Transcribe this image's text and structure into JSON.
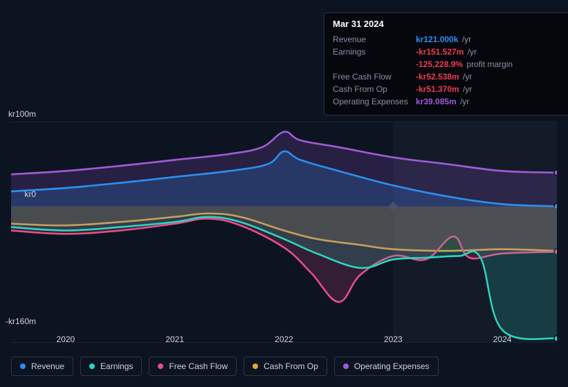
{
  "tooltip": {
    "date": "Mar 31 2024",
    "rows": [
      {
        "label": "Revenue",
        "value": "kr121.000k",
        "suffix": "/yr",
        "color": "#2b8fef"
      },
      {
        "label": "Earnings",
        "value": "-kr151.527m",
        "suffix": "/yr",
        "color": "#ef3b51"
      },
      {
        "label": "",
        "value": "-125,228.9%",
        "suffix": "profit margin",
        "color": "#ef3b51"
      },
      {
        "label": "Free Cash Flow",
        "value": "-kr52.538m",
        "suffix": "/yr",
        "color": "#ef3b51"
      },
      {
        "label": "Cash From Op",
        "value": "-kr51.370m",
        "suffix": "/yr",
        "color": "#ef3b51"
      },
      {
        "label": "Operating Expenses",
        "value": "kr39.085m",
        "suffix": "/yr",
        "color": "#9b59d8"
      }
    ]
  },
  "chart": {
    "background_color": "#0d1421",
    "ylim": [
      -160,
      100
    ],
    "y_ticks": [
      {
        "value": 100,
        "label": "kr100m"
      },
      {
        "value": 0,
        "label": "kr0"
      },
      {
        "value": -160,
        "label": "-kr160m"
      }
    ],
    "x_categories": [
      "2020",
      "2021",
      "2022",
      "2023",
      "2024"
    ],
    "x_range": [
      2019.5,
      2024.5
    ],
    "gridline_color": "#2a3040",
    "highlight_x": 2024.25,
    "event_marker": {
      "x": 2023.0,
      "color": "#4a5268"
    },
    "series": [
      {
        "name": "Operating Expenses",
        "color": "#a05bd6",
        "fill_to": "zero",
        "fill_opacity": 0.18,
        "line_width": 2.5,
        "data": [
          [
            2019.5,
            38
          ],
          [
            2020.0,
            42
          ],
          [
            2020.5,
            48
          ],
          [
            2021.0,
            55
          ],
          [
            2021.5,
            62
          ],
          [
            2021.8,
            70
          ],
          [
            2022.0,
            88
          ],
          [
            2022.15,
            78
          ],
          [
            2022.5,
            70
          ],
          [
            2023.0,
            58
          ],
          [
            2023.5,
            50
          ],
          [
            2024.0,
            42
          ],
          [
            2024.5,
            40
          ]
        ]
      },
      {
        "name": "Revenue",
        "color": "#2b8fef",
        "fill_to": "zero",
        "fill_opacity": 0.22,
        "line_width": 2.5,
        "data": [
          [
            2019.5,
            18
          ],
          [
            2020.0,
            22
          ],
          [
            2020.5,
            28
          ],
          [
            2021.0,
            35
          ],
          [
            2021.5,
            42
          ],
          [
            2021.85,
            50
          ],
          [
            2022.0,
            65
          ],
          [
            2022.15,
            55
          ],
          [
            2022.5,
            42
          ],
          [
            2023.0,
            25
          ],
          [
            2023.5,
            12
          ],
          [
            2024.0,
            3
          ],
          [
            2024.5,
            0.5
          ]
        ]
      },
      {
        "name": "Cash From Op",
        "color": "#e8a33c",
        "fill_to": "zero",
        "fill_opacity": 0.15,
        "line_width": 2.5,
        "data": [
          [
            2019.5,
            -20
          ],
          [
            2020.0,
            -22
          ],
          [
            2020.5,
            -18
          ],
          [
            2021.0,
            -12
          ],
          [
            2021.3,
            -8
          ],
          [
            2021.6,
            -12
          ],
          [
            2022.0,
            -28
          ],
          [
            2022.3,
            -38
          ],
          [
            2022.7,
            -45
          ],
          [
            2023.0,
            -50
          ],
          [
            2023.5,
            -52
          ],
          [
            2024.0,
            -50
          ],
          [
            2024.5,
            -52
          ]
        ]
      },
      {
        "name": "Free Cash Flow",
        "color": "#e84d8a",
        "fill_to": "zero",
        "fill_opacity": 0.18,
        "line_width": 2.5,
        "data": [
          [
            2019.5,
            -28
          ],
          [
            2020.0,
            -32
          ],
          [
            2020.5,
            -28
          ],
          [
            2021.0,
            -20
          ],
          [
            2021.3,
            -14
          ],
          [
            2021.6,
            -22
          ],
          [
            2022.0,
            -48
          ],
          [
            2022.25,
            -78
          ],
          [
            2022.5,
            -112
          ],
          [
            2022.7,
            -80
          ],
          [
            2023.0,
            -58
          ],
          [
            2023.3,
            -62
          ],
          [
            2023.55,
            -35
          ],
          [
            2023.7,
            -60
          ],
          [
            2024.0,
            -55
          ],
          [
            2024.5,
            -53
          ]
        ]
      },
      {
        "name": "Earnings",
        "color": "#2dd4bf",
        "fill_to": "zero",
        "fill_opacity": 0.18,
        "line_width": 2.5,
        "data": [
          [
            2019.5,
            -24
          ],
          [
            2020.0,
            -28
          ],
          [
            2020.5,
            -24
          ],
          [
            2021.0,
            -18
          ],
          [
            2021.3,
            -12
          ],
          [
            2021.6,
            -18
          ],
          [
            2022.0,
            -38
          ],
          [
            2022.3,
            -55
          ],
          [
            2022.7,
            -72
          ],
          [
            2023.0,
            -62
          ],
          [
            2023.3,
            -60
          ],
          [
            2023.6,
            -58
          ],
          [
            2023.8,
            -60
          ],
          [
            2024.0,
            -145
          ],
          [
            2024.5,
            -155
          ]
        ]
      }
    ],
    "legend": [
      {
        "label": "Revenue",
        "color": "#2b8fef"
      },
      {
        "label": "Earnings",
        "color": "#2dd4bf"
      },
      {
        "label": "Free Cash Flow",
        "color": "#e84d8a"
      },
      {
        "label": "Cash From Op",
        "color": "#e8a33c"
      },
      {
        "label": "Operating Expenses",
        "color": "#a05bd6"
      }
    ]
  }
}
